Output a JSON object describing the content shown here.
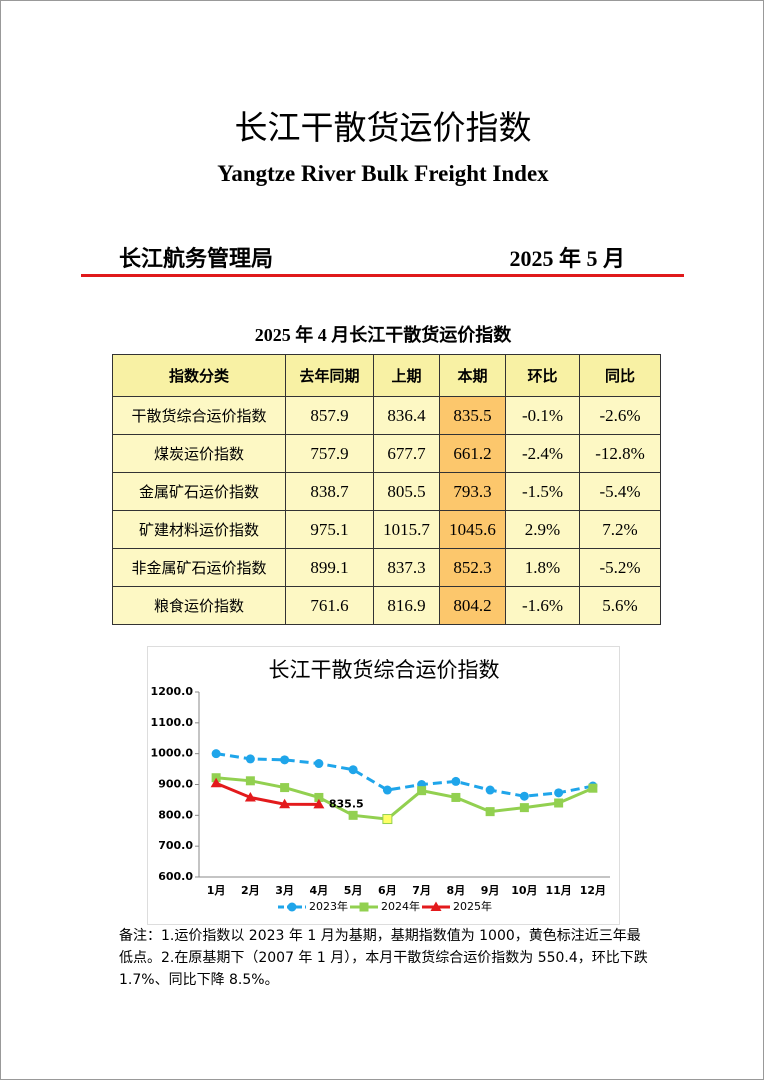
{
  "header": {
    "title": "长江干散货运价指数",
    "subtitle": "Yangtze River Bulk Freight Index",
    "org": "长江航务管理局",
    "date": "2025 年 5 月"
  },
  "table": {
    "title": "2025 年 4 月长江干散货运价指数",
    "columns": [
      "指数分类",
      "去年同期",
      "上期",
      "本期",
      "环比",
      "同比"
    ],
    "rows": [
      [
        "干散货综合运价指数",
        "857.9",
        "836.4",
        "835.5",
        "-0.1%",
        "-2.6%"
      ],
      [
        "煤炭运价指数",
        "757.9",
        "677.7",
        "661.2",
        "-2.4%",
        "-12.8%"
      ],
      [
        "金属矿石运价指数",
        "838.7",
        "805.5",
        "793.3",
        "-1.5%",
        "-5.4%"
      ],
      [
        "矿建材料运价指数",
        "975.1",
        "1015.7",
        "1045.6",
        "2.9%",
        "7.2%"
      ],
      [
        "非金属矿石运价指数",
        "899.1",
        "837.3",
        "852.3",
        "1.8%",
        "-5.2%"
      ],
      [
        "粮食运价指数",
        "761.6",
        "816.9",
        "804.2",
        "-1.6%",
        "5.6%"
      ]
    ]
  },
  "chart_data": {
    "type": "line",
    "title": "长江干散货综合运价指数",
    "categories": [
      "1月",
      "2月",
      "3月",
      "4月",
      "5月",
      "6月",
      "7月",
      "8月",
      "9月",
      "10月",
      "11月",
      "12月"
    ],
    "series": [
      {
        "name": "2023年",
        "color": "#1fa5ea",
        "marker": "circle",
        "dash": true,
        "values": [
          1000,
          983,
          980,
          968,
          948,
          882,
          900,
          910,
          882,
          862,
          873,
          895
        ]
      },
      {
        "name": "2024年",
        "color": "#92d050",
        "marker": "square",
        "dash": false,
        "values": [
          922,
          912,
          890,
          858,
          800,
          788,
          880,
          858,
          812,
          825,
          840,
          888
        ]
      },
      {
        "name": "2025年",
        "color": "#e31a1c",
        "marker": "triangle",
        "dash": false,
        "values": [
          904,
          858,
          836,
          835.5,
          null,
          null,
          null,
          null,
          null,
          null,
          null,
          null
        ],
        "value_labels": [
          null,
          null,
          null,
          "835.5",
          null,
          null,
          null,
          null,
          null,
          null,
          null,
          null
        ]
      }
    ],
    "highlight_color": "#ffff66",
    "ylim": [
      600,
      1200
    ],
    "yticks": [
      {
        "value": 600,
        "label": "600.0"
      },
      {
        "value": 700,
        "label": "700.0"
      },
      {
        "value": 800,
        "label": "800.0"
      },
      {
        "value": 900,
        "label": "900.0"
      },
      {
        "value": 1000,
        "label": "1000.0"
      },
      {
        "value": 1100,
        "label": "1100.0"
      },
      {
        "value": 1200,
        "label": "1200.0"
      }
    ],
    "legend": "bottom"
  },
  "note": "备注：1.运价指数以 2023 年 1 月为基期，基期指数值为 1000，黄色标注近三年最低点。2.在原基期下（2007 年 1 月），本月干散货综合运价指数为 550.4，环比下跌 1.7%、同比下降 8.5%。"
}
